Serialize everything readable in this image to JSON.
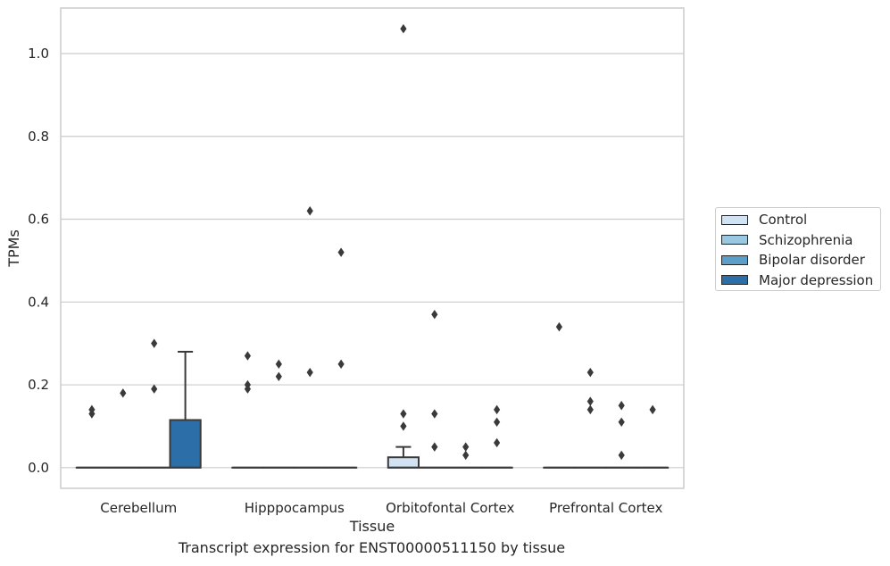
{
  "chart_data": {
    "type": "box",
    "title": "",
    "xlabel": "Tissue",
    "ylabel": "TPMs",
    "caption": "Transcript expression for ENST00000511150 by tissue",
    "categories": [
      "Cerebellum",
      "Hipppocampus",
      "Orbitofontal Cortex",
      "Prefrontal Cortex"
    ],
    "ylim": [
      -0.05,
      1.11
    ],
    "yticks": [
      "0.0",
      "0.2",
      "0.4",
      "0.6",
      "0.8",
      "1.0"
    ],
    "grid": true,
    "legend_position": "right",
    "series": [
      {
        "name": "Control",
        "color": "#d1e2f2",
        "boxes": [
          {
            "q1": 0,
            "median": 0,
            "q3": 0,
            "whisker_low": 0,
            "whisker_high": 0,
            "outliers": [
              0.14,
              0.13
            ]
          },
          {
            "q1": 0,
            "median": 0,
            "q3": 0,
            "whisker_low": 0,
            "whisker_high": 0,
            "outliers": [
              0.27,
              0.2,
              0.19
            ]
          },
          {
            "q1": 0,
            "median": 0,
            "q3": 0.025,
            "whisker_low": 0,
            "whisker_high": 0.05,
            "outliers": [
              1.06,
              0.13,
              0.1
            ]
          },
          {
            "q1": 0,
            "median": 0,
            "q3": 0,
            "whisker_low": 0,
            "whisker_high": 0,
            "outliers": [
              0.34
            ]
          }
        ]
      },
      {
        "name": "Schizophrenia",
        "color": "#9ac8e0",
        "boxes": [
          {
            "q1": 0,
            "median": 0,
            "q3": 0,
            "whisker_low": 0,
            "whisker_high": 0,
            "outliers": [
              0.18
            ]
          },
          {
            "q1": 0,
            "median": 0,
            "q3": 0,
            "whisker_low": 0,
            "whisker_high": 0,
            "outliers": [
              0.25,
              0.22
            ]
          },
          {
            "q1": 0,
            "median": 0,
            "q3": 0,
            "whisker_low": 0,
            "whisker_high": 0,
            "outliers": [
              0.37,
              0.13,
              0.05
            ]
          },
          {
            "q1": 0,
            "median": 0,
            "q3": 0,
            "whisker_low": 0,
            "whisker_high": 0,
            "outliers": [
              0.23,
              0.16,
              0.14
            ]
          }
        ]
      },
      {
        "name": "Bipolar disorder",
        "color": "#5a9ec9",
        "boxes": [
          {
            "q1": 0,
            "median": 0,
            "q3": 0,
            "whisker_low": 0,
            "whisker_high": 0,
            "outliers": [
              0.3,
              0.19
            ]
          },
          {
            "q1": 0,
            "median": 0,
            "q3": 0,
            "whisker_low": 0,
            "whisker_high": 0,
            "outliers": [
              0.62,
              0.23
            ]
          },
          {
            "q1": 0,
            "median": 0,
            "q3": 0,
            "whisker_low": 0,
            "whisker_high": 0,
            "outliers": [
              0.05,
              0.03
            ]
          },
          {
            "q1": 0,
            "median": 0,
            "q3": 0,
            "whisker_low": 0,
            "whisker_high": 0,
            "outliers": [
              0.15,
              0.11,
              0.03
            ]
          }
        ]
      },
      {
        "name": "Major depression",
        "color": "#2b6ea8",
        "boxes": [
          {
            "q1": 0,
            "median": 0,
            "q3": 0.115,
            "whisker_low": 0,
            "whisker_high": 0.28,
            "outliers": []
          },
          {
            "q1": 0,
            "median": 0,
            "q3": 0,
            "whisker_low": 0,
            "whisker_high": 0,
            "outliers": [
              0.52,
              0.25
            ]
          },
          {
            "q1": 0,
            "median": 0,
            "q3": 0,
            "whisker_low": 0,
            "whisker_high": 0,
            "outliers": [
              0.14,
              0.11,
              0.06
            ]
          },
          {
            "q1": 0,
            "median": 0,
            "q3": 0,
            "whisker_low": 0,
            "whisker_high": 0,
            "outliers": [
              0.14
            ]
          }
        ]
      }
    ]
  }
}
